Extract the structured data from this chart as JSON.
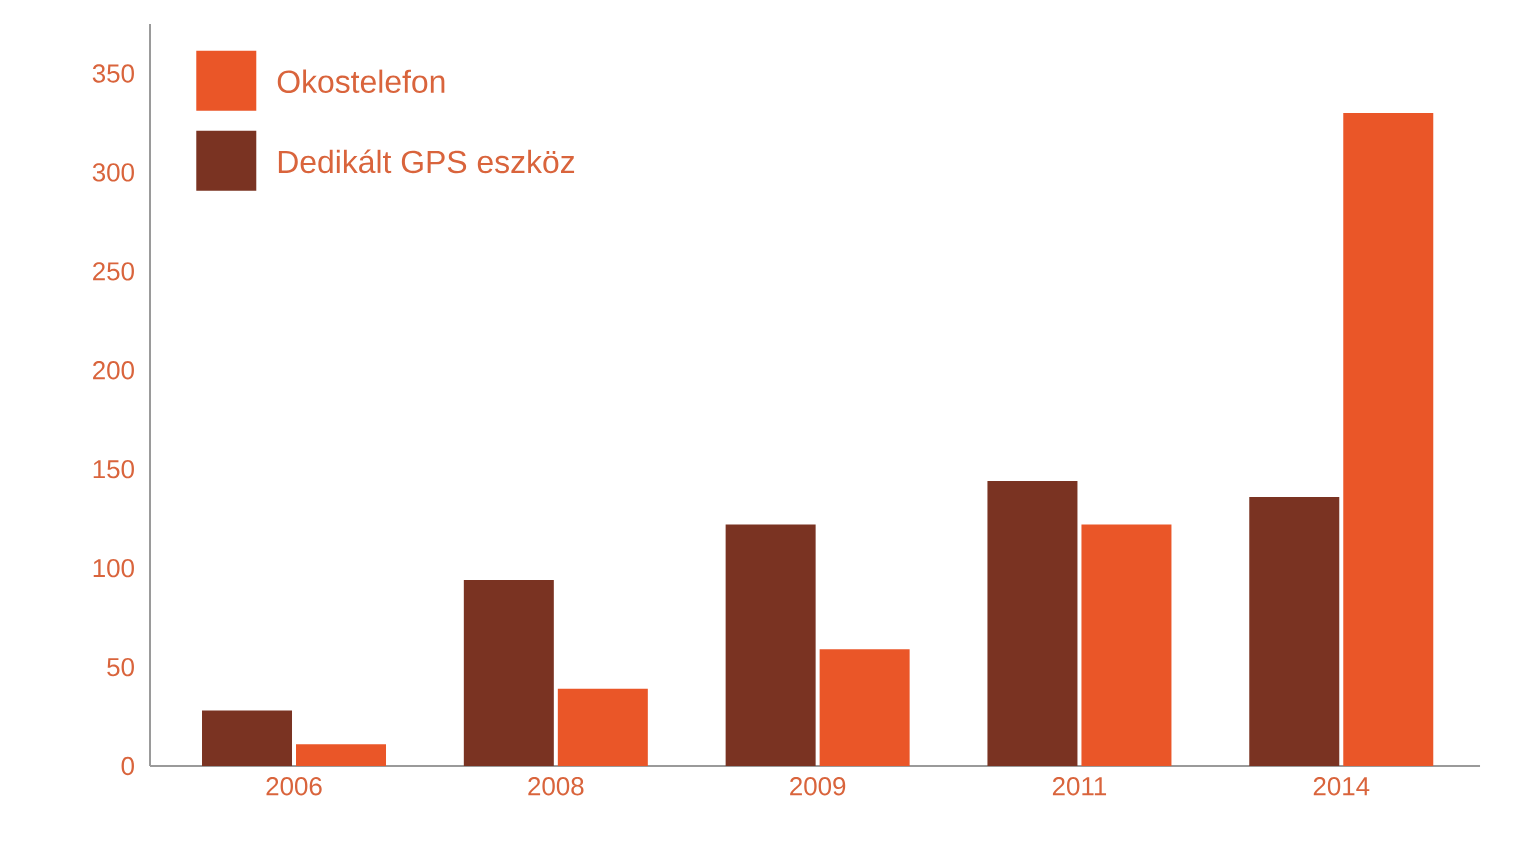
{
  "chart_data": {
    "type": "bar",
    "categories": [
      "2006",
      "2008",
      "2009",
      "2011",
      "2014"
    ],
    "series": [
      {
        "name": "Dedikált GPS eszköz",
        "color": "#7a3322",
        "values": [
          28,
          94,
          122,
          144,
          136
        ]
      },
      {
        "name": "Okostelefon",
        "color": "#ea5628",
        "values": [
          11,
          39,
          59,
          122,
          330
        ]
      }
    ],
    "ylim": [
      0,
      375
    ],
    "yticks": [
      0,
      50,
      100,
      150,
      200,
      250,
      300,
      350
    ],
    "grid": false,
    "legend": "top left"
  }
}
